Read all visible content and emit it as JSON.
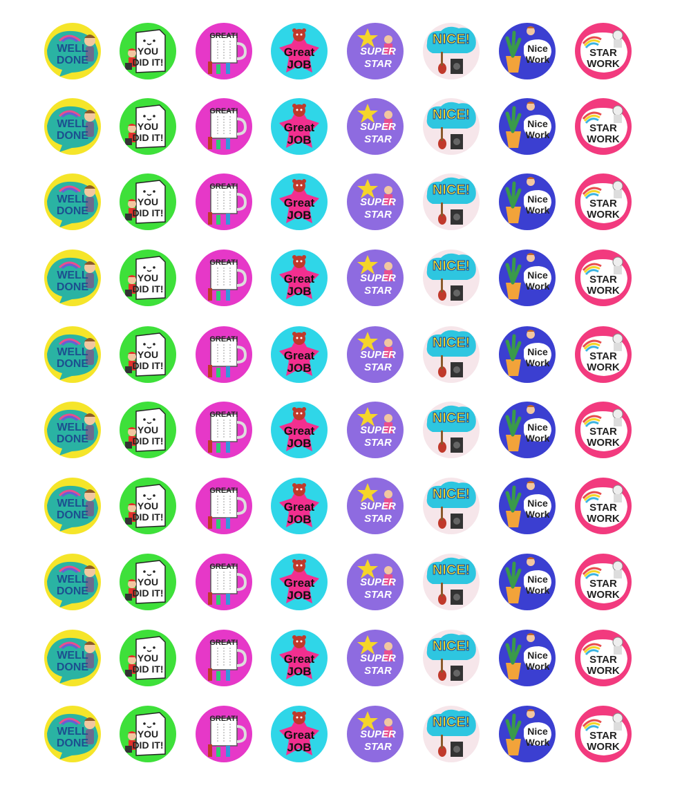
{
  "stickers": [
    {
      "id": "well-done",
      "lines": [
        "WELL",
        "DONE"
      ],
      "bg": "#f5e52a",
      "accent": "#2ab3a3",
      "ink": "#1c4f8f"
    },
    {
      "id": "you-did-it",
      "lines": [
        "YOU",
        "DID IT!"
      ],
      "bg": "#3ee03a",
      "accent": "#ffffff",
      "ink": "#222222"
    },
    {
      "id": "great",
      "lines": [
        "GREAT!"
      ],
      "bg": "#e638c8",
      "accent": "#ffffff",
      "ink": "#222222"
    },
    {
      "id": "great-job",
      "lines": [
        "Great",
        "JOB"
      ],
      "bg": "#2fd6e8",
      "accent": "#f22f8f",
      "ink": "#111111"
    },
    {
      "id": "super-star",
      "lines": [
        "SUPER",
        "STAR"
      ],
      "bg": "#8e6be0",
      "accent": "#f5d52a",
      "ink": "#ffffff"
    },
    {
      "id": "nice",
      "lines": [
        "NICE!"
      ],
      "bg": "#f6e6ea",
      "accent": "#2ec6e0",
      "ink": "#f5e52a"
    },
    {
      "id": "nice-work",
      "lines": [
        "Nice",
        "Work"
      ],
      "bg": "#3b3fd1",
      "accent": "#ffffff",
      "ink": "#222222"
    },
    {
      "id": "star-work",
      "lines": [
        "STAR",
        "WORK"
      ],
      "bg": "#f23a7e",
      "accent": "#ffffff",
      "ink": "#222222"
    }
  ],
  "rows": 10,
  "icons": [
    "rainbow-icon",
    "boy-character-icon",
    "guitar-icon",
    "amplifier-icon",
    "star-icon",
    "cloud-icon",
    "cactus-pot-icon",
    "astronaut-icon",
    "bear-character-icon"
  ]
}
